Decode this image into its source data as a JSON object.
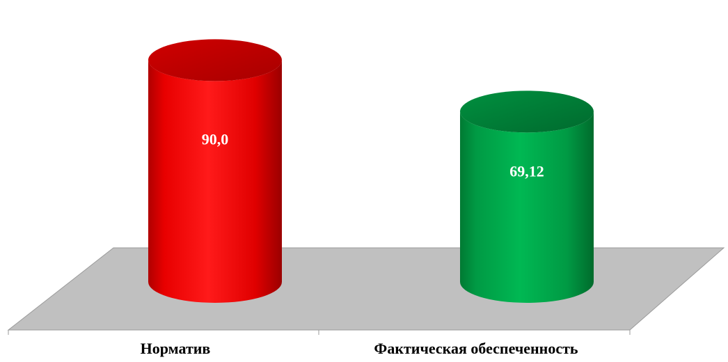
{
  "chart_data": {
    "type": "bar",
    "style": "3d-cylinder",
    "categories": [
      "Норматив",
      "Фактическая обеспеченность"
    ],
    "values": [
      90.0,
      69.12
    ],
    "value_labels": [
      "90,0",
      "69,12"
    ],
    "colors": [
      "#ff0000",
      "#00a651"
    ],
    "ylim": [
      0,
      100
    ],
    "grid": false,
    "legend": "none"
  }
}
